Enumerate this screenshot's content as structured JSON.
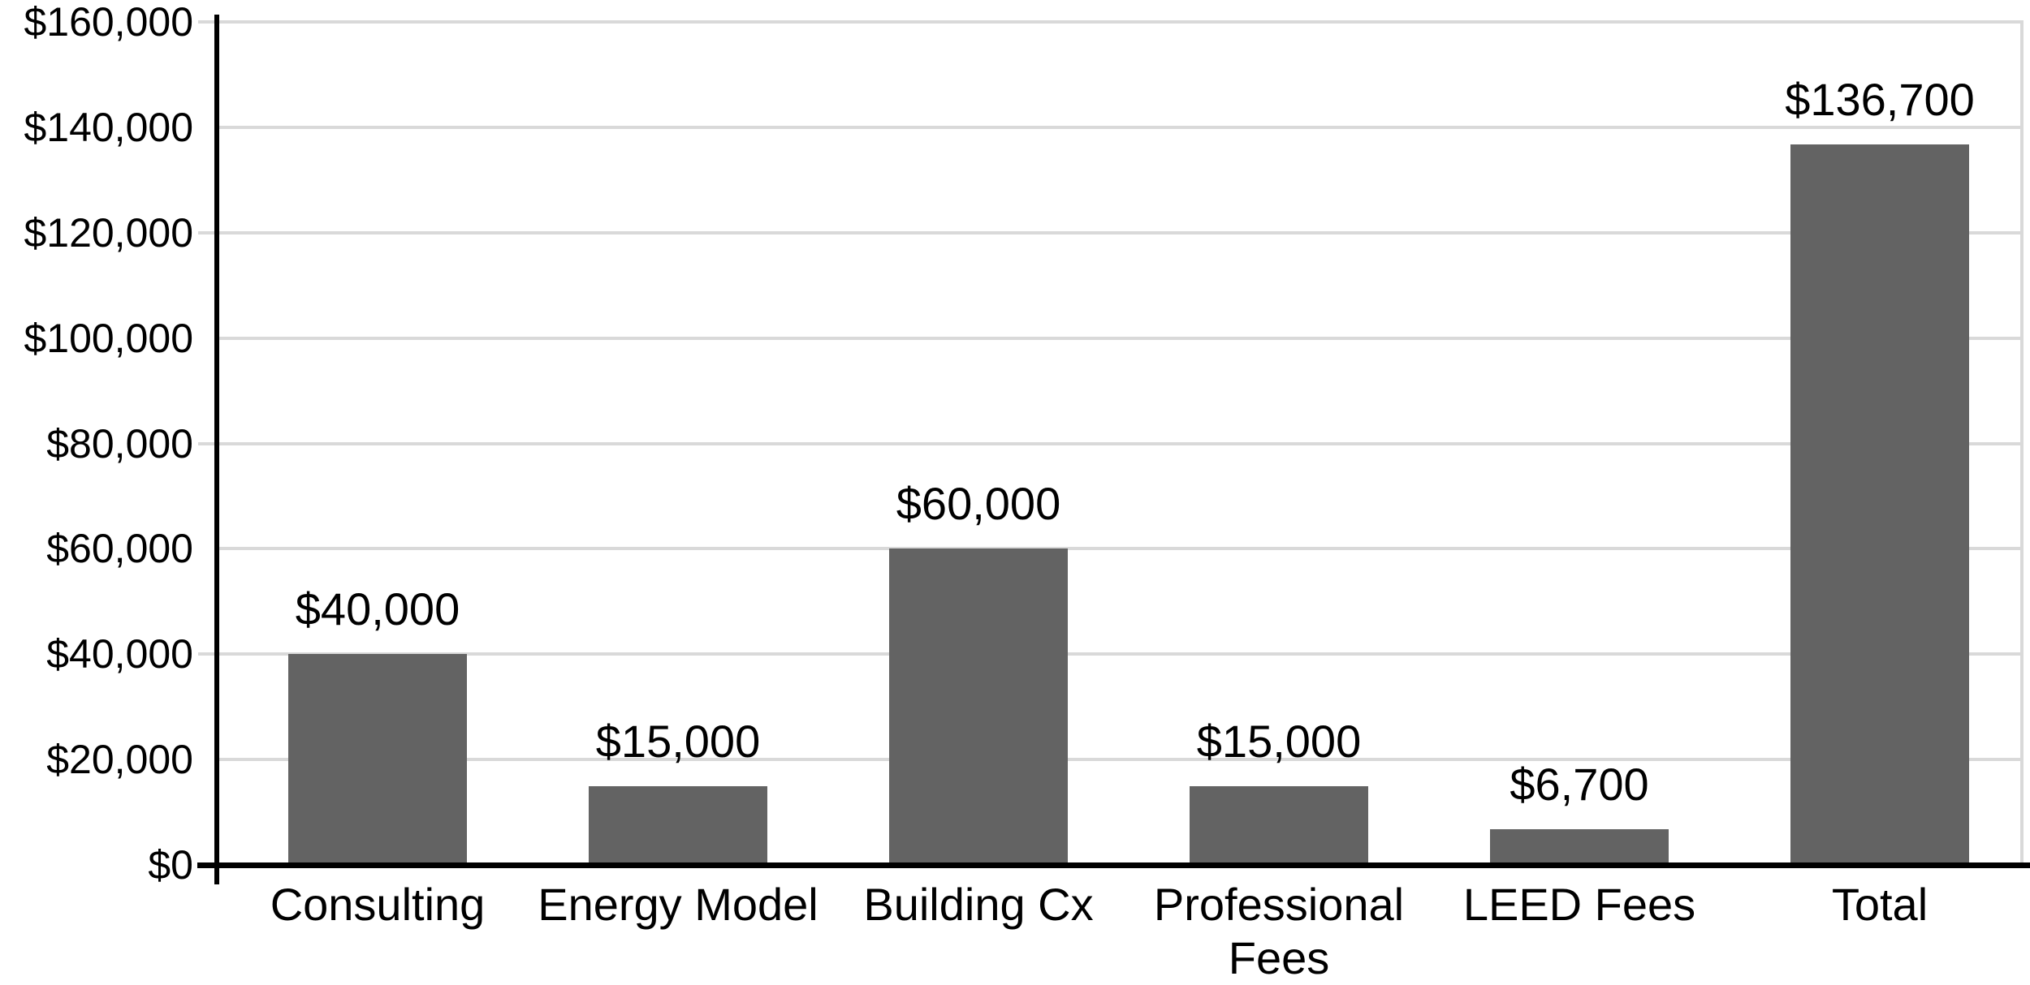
{
  "chart_data": {
    "type": "bar",
    "categories": [
      "Consulting",
      "Energy Model",
      "Building Cx",
      "Professional Fees",
      "LEED Fees",
      "Total"
    ],
    "values": [
      40000,
      15000,
      60000,
      15000,
      6700,
      136700
    ],
    "data_labels": [
      "$40,000",
      "$15,000",
      "$60,000",
      "$15,000",
      "$6,700",
      "$136,700"
    ],
    "y_axis": {
      "min": 0,
      "max": 160000,
      "step": 20000,
      "tick_labels": [
        "$0",
        "$20,000",
        "$40,000",
        "$60,000",
        "$80,000",
        "$100,000",
        "$120,000",
        "$140,000",
        "$160,000"
      ]
    },
    "grid": true,
    "legend": "none",
    "colors": {
      "bar": "#636363",
      "gridline": "#D9D9D9",
      "axis": "#000000",
      "text": "#000000",
      "background": "#FFFFFF"
    }
  }
}
